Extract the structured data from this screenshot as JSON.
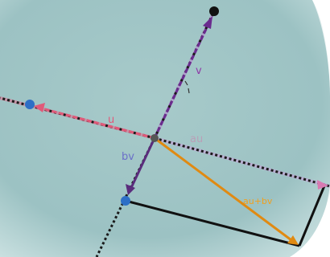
{
  "diagram": {
    "labels": {
      "v": "v",
      "u": "u",
      "au": "au",
      "bv": "bv",
      "sum": "au+bv"
    },
    "colors": {
      "background_plane": "#9ec4c4",
      "axis_dash": "#1a1a1a",
      "axis_v_light": "#b77fd0",
      "axis_u_light": "#e46b8c",
      "axis_au_light": "#c99fd9",
      "vector_v": "#6a2b8e",
      "vector_u": "#e05a79",
      "vector_bv": "#5a2c7c",
      "vector_sum": "#e08a12",
      "parallelogram": "#111111",
      "point_blue": "#2d6fc6",
      "point_black": "#111111",
      "point_origin": "#555555",
      "label_v": "#8e3aa8",
      "label_u": "#e05a79",
      "label_au": "#b9a0b8",
      "label_bv": "#6b6fc8",
      "label_sum": "#f0a020"
    }
  }
}
